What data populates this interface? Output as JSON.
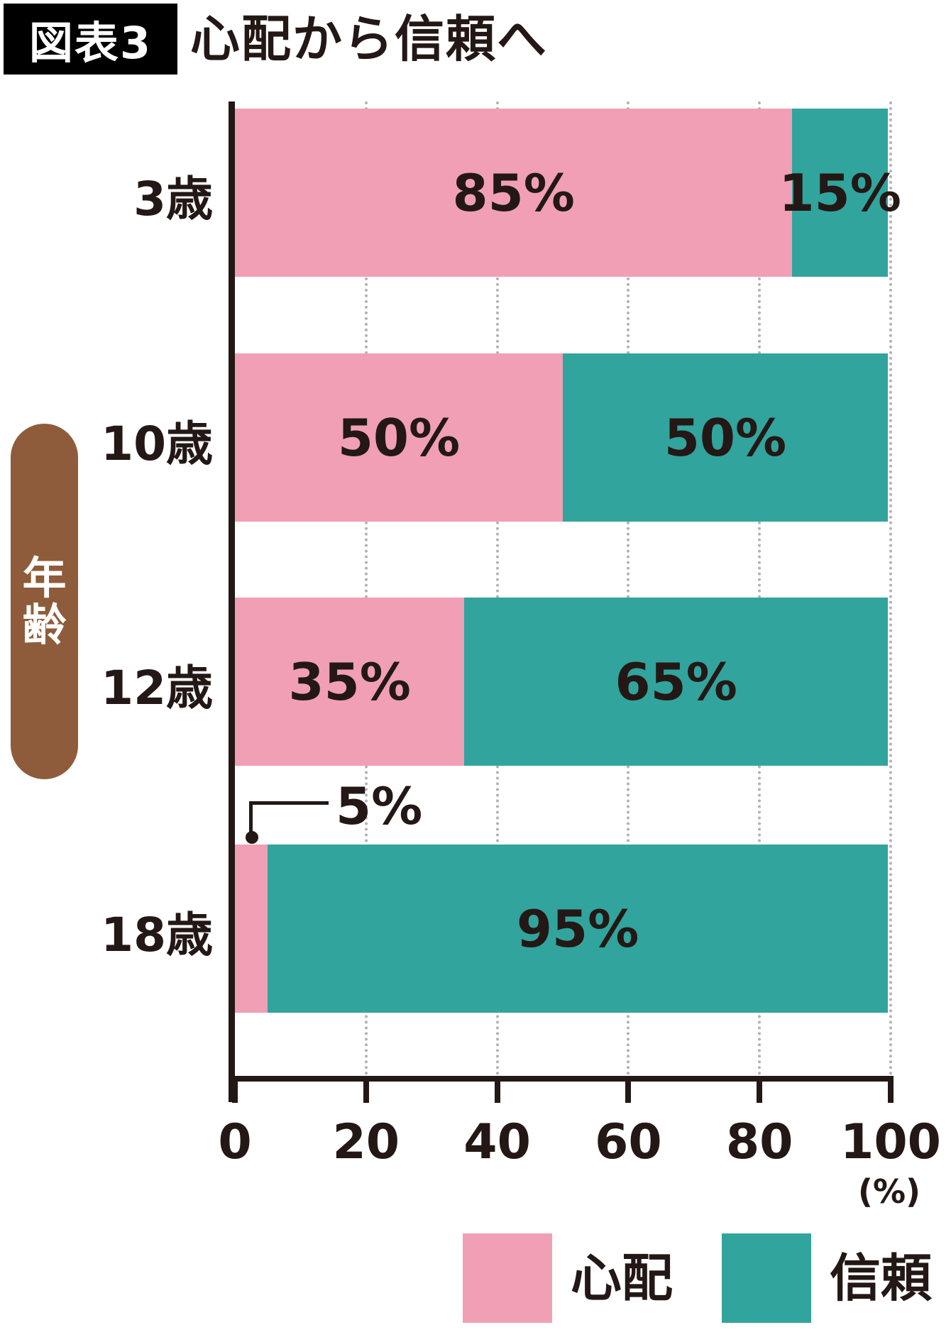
{
  "title": {
    "badge": "図表3",
    "text": "心配から信頼へ"
  },
  "y_axis": {
    "label": "年齢",
    "label_chars": [
      "年",
      "齢"
    ]
  },
  "x_axis": {
    "ticks": [
      0,
      20,
      40,
      60,
      80,
      100
    ],
    "unit": "(%)"
  },
  "legend": [
    {
      "label": "心配",
      "color": "#f19fb5"
    },
    {
      "label": "信頼",
      "color": "#31a49d"
    }
  ],
  "colors": {
    "worry_pink": "#f19fb5",
    "trust_teal": "#31a49d",
    "age_pill_brown": "#8e5c3a",
    "text_black": "#231815",
    "grid_gray": "#b2b2b3",
    "badge_bg": "#000000"
  },
  "chart_data": {
    "type": "bar",
    "orientation": "horizontal",
    "stacked": true,
    "title": "心配から信頼へ",
    "categories": [
      "3歳",
      "10歳",
      "12歳",
      "18歳"
    ],
    "series": [
      {
        "name": "心配",
        "color": "#f19fb5",
        "values": [
          85,
          50,
          35,
          5
        ]
      },
      {
        "name": "信頼",
        "color": "#31a49d",
        "values": [
          15,
          50,
          65,
          95
        ]
      }
    ],
    "value_suffix": "%",
    "xlim": [
      0,
      100
    ],
    "x_ticks": [
      0,
      20,
      40,
      60,
      80,
      100
    ],
    "x_unit": "(%)",
    "ylabel": "年齢",
    "grid": "dotted-vertical",
    "legend_position": "bottom",
    "callouts": [
      {
        "category": "18歳",
        "series": "心配",
        "text": "5%"
      }
    ]
  }
}
